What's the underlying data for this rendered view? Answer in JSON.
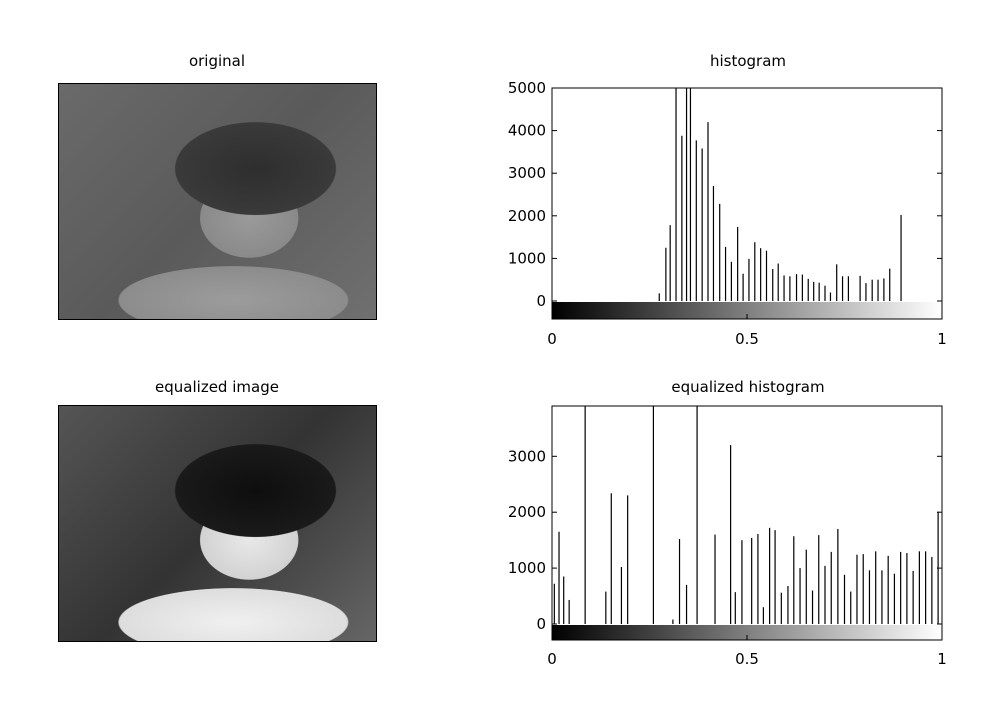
{
  "panels": {
    "original_title": "original",
    "equalized_title": "equalized image"
  },
  "chart_data": [
    {
      "type": "bar",
      "title": "histogram",
      "xlabel": "",
      "ylabel": "",
      "xlim": [
        0,
        1
      ],
      "ylim": [
        -600,
        5000
      ],
      "xticks": [
        0,
        0.5,
        1
      ],
      "yticks": [
        0,
        1000,
        2000,
        3000,
        4000,
        5000
      ],
      "xtick_labels": [
        "0",
        "0.5",
        "1"
      ],
      "ytick_labels": [
        "0",
        "1000",
        "2000",
        "3000",
        "4000",
        "5000"
      ],
      "colorbar": "grayscale",
      "x": [
        0.275,
        0.292,
        0.303,
        0.318,
        0.333,
        0.345,
        0.355,
        0.37,
        0.385,
        0.4,
        0.414,
        0.43,
        0.445,
        0.46,
        0.476,
        0.49,
        0.505,
        0.52,
        0.535,
        0.55,
        0.566,
        0.58,
        0.595,
        0.61,
        0.627,
        0.642,
        0.657,
        0.671,
        0.685,
        0.7,
        0.714,
        0.73,
        0.745,
        0.76,
        0.774,
        0.79,
        0.805,
        0.821,
        0.836,
        0.851,
        0.866,
        0.88,
        0.895,
        0.91,
        0.932
      ],
      "values": [
        180,
        1250,
        1780,
        5000,
        3880,
        5000,
        5000,
        3770,
        3580,
        4200,
        2700,
        2280,
        1270,
        920,
        1740,
        640,
        990,
        1380,
        1240,
        1180,
        750,
        880,
        600,
        580,
        630,
        620,
        520,
        450,
        430,
        360,
        200,
        860,
        580,
        580,
        0,
        590,
        420,
        500,
        500,
        530,
        760,
        0,
        2020,
        0,
        0
      ]
    },
    {
      "type": "bar",
      "title": "equalized histogram",
      "xlabel": "",
      "ylabel": "",
      "xlim": [
        0,
        1
      ],
      "ylim": [
        -400,
        3900
      ],
      "xticks": [
        0,
        0.5,
        1
      ],
      "yticks": [
        0,
        1000,
        2000,
        3000
      ],
      "xtick_labels": [
        "0",
        "0.5",
        "1"
      ],
      "ytick_labels": [
        "0",
        "1000",
        "2000",
        "3000"
      ],
      "colorbar": "grayscale",
      "x": [
        0.006,
        0.018,
        0.03,
        0.044,
        0.085,
        0.138,
        0.152,
        0.178,
        0.194,
        0.26,
        0.31,
        0.327,
        0.345,
        0.372,
        0.418,
        0.458,
        0.47,
        0.487,
        0.512,
        0.528,
        0.542,
        0.558,
        0.572,
        0.588,
        0.605,
        0.62,
        0.636,
        0.652,
        0.668,
        0.684,
        0.7,
        0.716,
        0.733,
        0.75,
        0.766,
        0.782,
        0.798,
        0.814,
        0.83,
        0.846,
        0.862,
        0.878,
        0.894,
        0.91,
        0.926,
        0.942,
        0.958,
        0.974,
        0.99
      ],
      "values": [
        720,
        1650,
        850,
        430,
        3900,
        580,
        2340,
        1020,
        2300,
        3900,
        80,
        1520,
        700,
        3900,
        1600,
        3200,
        570,
        1500,
        1540,
        1610,
        300,
        1720,
        1680,
        560,
        680,
        1570,
        1000,
        1330,
        600,
        1590,
        1040,
        1290,
        1700,
        880,
        580,
        1240,
        1250,
        960,
        1300,
        960,
        1220,
        900,
        1290,
        1270,
        950,
        1300,
        1300,
        1200,
        2010
      ]
    }
  ]
}
